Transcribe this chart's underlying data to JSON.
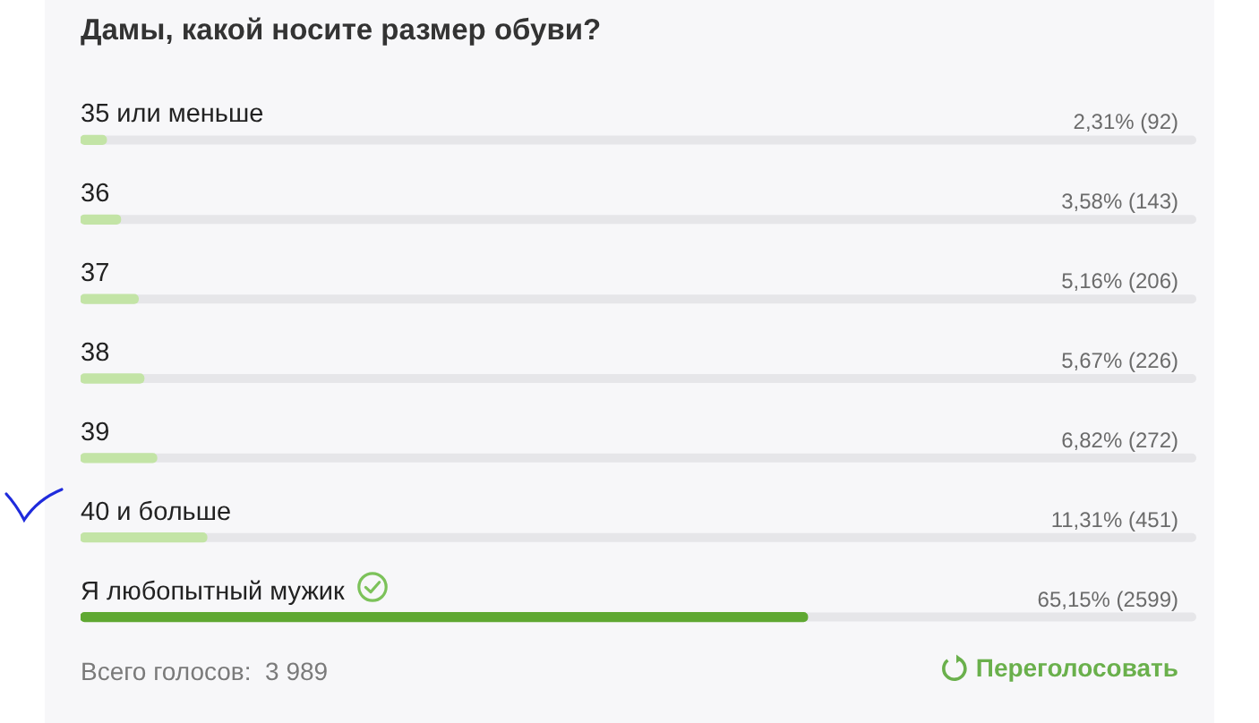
{
  "chart_data": {
    "type": "bar",
    "orientation": "horizontal",
    "title": "Дамы, какой носите размер обуви?",
    "categories": [
      "35 или меньше",
      "36",
      "37",
      "38",
      "39",
      "40 и больше",
      "Я любопытный мужик"
    ],
    "values": [
      2.31,
      3.58,
      5.16,
      5.67,
      6.82,
      11.31,
      65.15
    ],
    "colors": [
      "#c3e4a6",
      "#c3e4a6",
      "#c3e4a6",
      "#c3e4a6",
      "#c3e4a6",
      "#c3e4a6",
      "#5fa832"
    ],
    "value_labels": [
      "2,31% (92)",
      "3,58% (143)",
      "5,16% (206)",
      "5,67% (226)",
      "6,82% (272)",
      "11,31% (451)",
      "65,15% (2599)"
    ],
    "xlim": [
      0,
      100
    ],
    "tick_labels": "y",
    "annotations": [
      "Всего голосов:  3 989",
      "Переголосовать"
    ]
  }
}
